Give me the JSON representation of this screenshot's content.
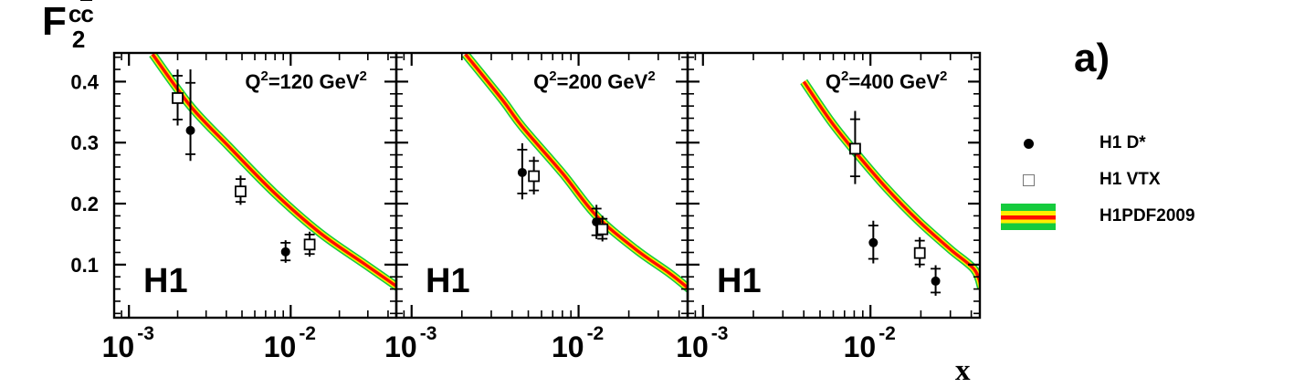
{
  "figure": {
    "ylabel": {
      "base": "F",
      "sup_plain": "c",
      "sup_bar": "c",
      "sub": "2"
    },
    "xlabel": "x",
    "panel_tag": "a)"
  },
  "legend": {
    "items": [
      {
        "marker": "filled-circle",
        "label": "H1 D*"
      },
      {
        "marker": "open-square",
        "label": "H1 VTX"
      },
      {
        "marker": "band",
        "label": "H1PDF2009"
      }
    ]
  },
  "colors": {
    "band_center": "#ff0b00",
    "band_mid": "#ffee00",
    "band_outer": "#15cb3d",
    "marker": "#000000",
    "axis": "#000000"
  },
  "chart_data": {
    "type": "line",
    "title": "",
    "xlabel": "x",
    "ylabel": "F2 ccbar",
    "x_scale": "log",
    "xlim": [
      0.00081,
      0.045
    ],
    "ylim": [
      0.013,
      0.447
    ],
    "grid": false,
    "legend_position": "right-outside",
    "y_major_ticks": [
      0.1,
      0.2,
      0.3,
      0.4
    ],
    "y_tick_labels": [
      "0.1",
      "0.2",
      "0.3",
      "0.4"
    ],
    "y_minor_step": 0.02,
    "x_major_ticks": [
      {
        "value": 0.001,
        "base": "10",
        "exp": "-3"
      },
      {
        "value": 0.01,
        "base": "10",
        "exp": "-2"
      }
    ],
    "x_minor_ticks": [
      0.0009,
      0.002,
      0.003,
      0.004,
      0.005,
      0.006,
      0.007,
      0.008,
      0.009,
      0.02,
      0.03,
      0.04
    ],
    "panels": [
      {
        "q2_label": {
          "pre": "Q",
          "pre_exp": "2",
          "mid": "=",
          "value": "120",
          "unit": " GeV",
          "unit_exp": "2"
        },
        "h1_label": "H1",
        "band_points": [
          [
            0.0014,
            0.445
          ],
          [
            0.0024,
            0.36
          ],
          [
            0.0041,
            0.295
          ],
          [
            0.0079,
            0.218
          ],
          [
            0.0152,
            0.152
          ],
          [
            0.029,
            0.1
          ],
          [
            0.046,
            0.063
          ]
        ],
        "series": [
          {
            "name": "H1 D*",
            "marker": "filled-circle",
            "points": [
              {
                "x": 0.0024,
                "y": 0.32,
                "eu": 0.1,
                "ed": 0.05
              },
              {
                "x": 0.0093,
                "y": 0.121,
                "eu": 0.019,
                "ed": 0.018
              }
            ]
          },
          {
            "name": "H1 VTX",
            "marker": "open-square",
            "points": [
              {
                "x": 0.002,
                "y": 0.373,
                "eu": 0.047,
                "ed": 0.045
              },
              {
                "x": 0.0049,
                "y": 0.22,
                "eu": 0.026,
                "ed": 0.022
              },
              {
                "x": 0.0131,
                "y": 0.133,
                "eu": 0.021,
                "ed": 0.02
              }
            ]
          }
        ]
      },
      {
        "q2_label": {
          "pre": "Q",
          "pre_exp": "2",
          "mid": "=",
          "value": "200",
          "unit": " GeV",
          "unit_exp": "2"
        },
        "h1_label": "H1",
        "band_points": [
          [
            0.0021,
            0.445
          ],
          [
            0.0035,
            0.37
          ],
          [
            0.0046,
            0.326
          ],
          [
            0.008,
            0.25
          ],
          [
            0.0128,
            0.18
          ],
          [
            0.022,
            0.125
          ],
          [
            0.035,
            0.086
          ],
          [
            0.046,
            0.06
          ]
        ],
        "series": [
          {
            "name": "H1 D*",
            "marker": "filled-circle",
            "points": [
              {
                "x": 0.0046,
                "y": 0.251,
                "eu": 0.048,
                "ed": 0.044
              },
              {
                "x": 0.0128,
                "y": 0.17,
                "eu": 0.028,
                "ed": 0.028
              }
            ]
          },
          {
            "name": "H1 VTX",
            "marker": "open-square",
            "points": [
              {
                "x": 0.0054,
                "y": 0.245,
                "eu": 0.032,
                "ed": 0.03
              },
              {
                "x": 0.0139,
                "y": 0.158,
                "eu": 0.022,
                "ed": 0.02
              }
            ]
          }
        ]
      },
      {
        "q2_label": {
          "pre": "Q",
          "pre_exp": "2",
          "mid": "=",
          "value": "400",
          "unit": " GeV",
          "unit_exp": "2"
        },
        "h1_label": "H1",
        "band_points": [
          [
            0.004,
            0.4
          ],
          [
            0.0058,
            0.335
          ],
          [
            0.0081,
            0.285
          ],
          [
            0.0125,
            0.225
          ],
          [
            0.0193,
            0.172
          ],
          [
            0.03,
            0.125
          ],
          [
            0.0417,
            0.092
          ],
          [
            0.046,
            0.062
          ]
        ],
        "series": [
          {
            "name": "H1 D*",
            "marker": "filled-circle",
            "points": [
              {
                "x": 0.0104,
                "y": 0.136,
                "eu": 0.036,
                "ed": 0.034
              },
              {
                "x": 0.0245,
                "y": 0.073,
                "eu": 0.026,
                "ed": 0.024
              }
            ]
          },
          {
            "name": "H1 VTX",
            "marker": "open-square",
            "points": [
              {
                "x": 0.0081,
                "y": 0.29,
                "eu": 0.062,
                "ed": 0.058
              },
              {
                "x": 0.0197,
                "y": 0.119,
                "eu": 0.026,
                "ed": 0.024
              }
            ]
          }
        ]
      }
    ]
  }
}
